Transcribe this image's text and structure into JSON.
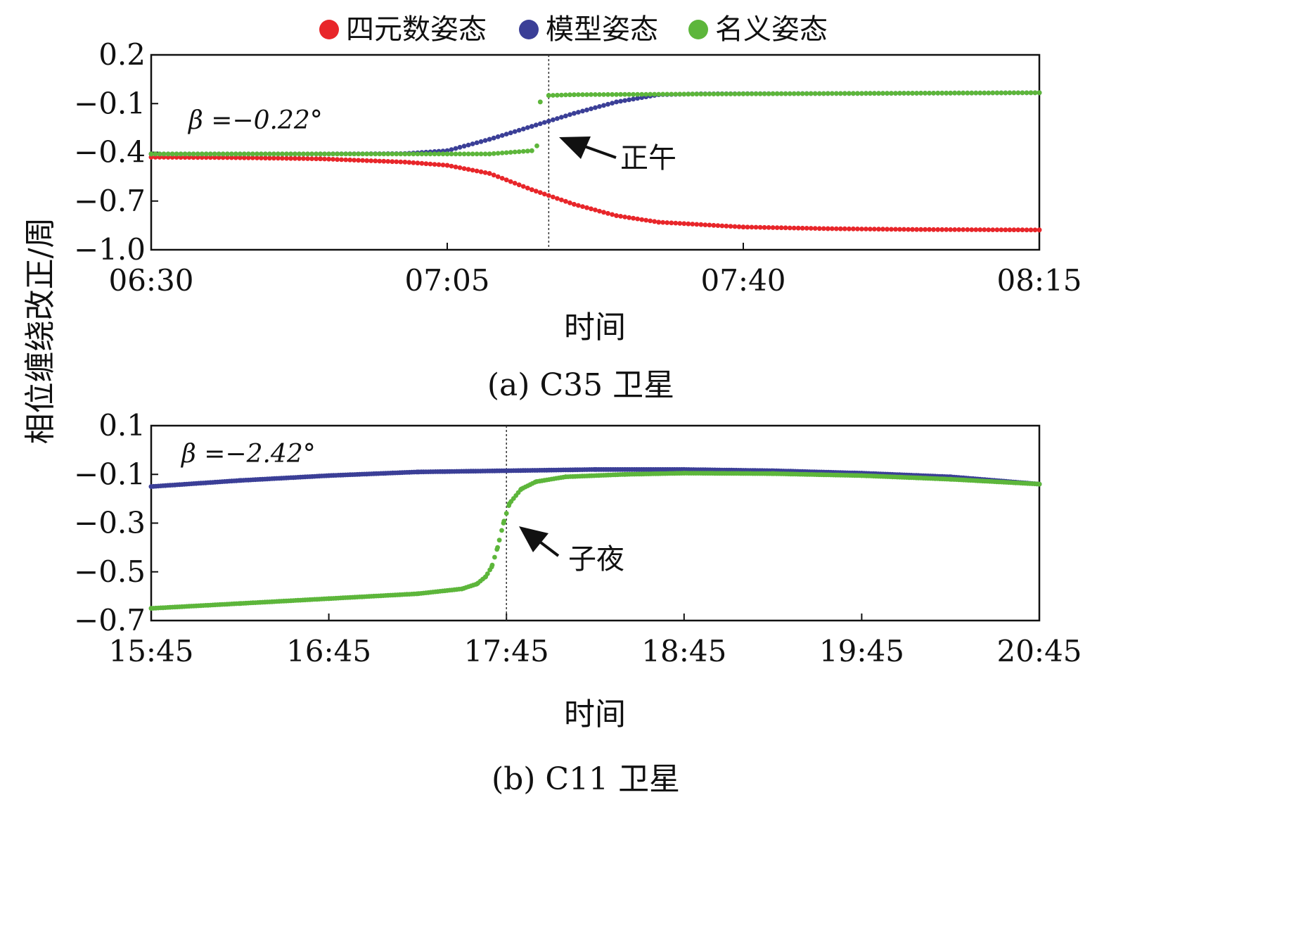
{
  "legend": [
    {
      "label": "四元数姿态",
      "color": "#e8262a"
    },
    {
      "label": "模型姿态",
      "color": "#3b3f97"
    },
    {
      "label": "名义姿态",
      "color": "#5db63b"
    }
  ],
  "y_label": "相位缠绕改正/周",
  "chart_data": [
    {
      "type": "scatter",
      "panel": "a",
      "caption": "(a) C35 卫星",
      "xlabel": "时间",
      "ylabel": "相位缠绕改正/周",
      "x_ticks": [
        "06:30",
        "07:05",
        "07:40",
        "08:15"
      ],
      "x_tick_minutes": [
        390,
        425,
        460,
        495
      ],
      "xlim_minutes": [
        390,
        495
      ],
      "y_ticks": [
        "0.2",
        "−0.1",
        "−0.4",
        "−0.7",
        "−1.0"
      ],
      "y_tick_values": [
        0.2,
        -0.1,
        -0.4,
        -0.7,
        -1.0
      ],
      "ylim": [
        -1.0,
        0.2
      ],
      "annotation": {
        "text": "正午",
        "x_minute": 437
      },
      "beta_label": "β =−0.22°",
      "series": [
        {
          "name": "四元数姿态",
          "color": "#e8262a",
          "points": [
            [
              390,
              -0.43
            ],
            [
              400,
              -0.433
            ],
            [
              410,
              -0.44
            ],
            [
              420,
              -0.46
            ],
            [
              425,
              -0.48
            ],
            [
              430,
              -0.53
            ],
            [
              435,
              -0.63
            ],
            [
              440,
              -0.72
            ],
            [
              445,
              -0.79
            ],
            [
              450,
              -0.83
            ],
            [
              460,
              -0.86
            ],
            [
              470,
              -0.87
            ],
            [
              480,
              -0.875
            ],
            [
              495,
              -0.878
            ]
          ]
        },
        {
          "name": "模型姿态",
          "color": "#3b3f97",
          "points": [
            [
              390,
              -0.41
            ],
            [
              410,
              -0.41
            ],
            [
              420,
              -0.408
            ],
            [
              425,
              -0.39
            ],
            [
              430,
              -0.32
            ],
            [
              435,
              -0.24
            ],
            [
              440,
              -0.16
            ],
            [
              445,
              -0.09
            ],
            [
              450,
              -0.045
            ],
            [
              455,
              -0.04
            ],
            [
              470,
              -0.038
            ],
            [
              495,
              -0.033
            ]
          ]
        },
        {
          "name": "名义姿态",
          "color": "#5db63b",
          "points": [
            [
              390,
              -0.41
            ],
            [
              400,
              -0.41
            ],
            [
              410,
              -0.41
            ],
            [
              420,
              -0.41
            ],
            [
              425,
              -0.41
            ],
            [
              430,
              -0.41
            ],
            [
              435,
              -0.39
            ],
            [
              435.6,
              -0.36
            ],
            [
              436,
              -0.09
            ],
            [
              437,
              -0.05
            ],
            [
              440,
              -0.045
            ],
            [
              460,
              -0.04
            ],
            [
              480,
              -0.036
            ],
            [
              495,
              -0.033
            ]
          ]
        }
      ]
    },
    {
      "type": "scatter",
      "panel": "b",
      "caption": "(b) C11 卫星",
      "xlabel": "时间",
      "ylabel": "相位缠绕改正/周",
      "x_ticks": [
        "15:45",
        "16:45",
        "17:45",
        "18:45",
        "19:45",
        "20:45"
      ],
      "x_tick_minutes": [
        945,
        1005,
        1065,
        1125,
        1185,
        1245
      ],
      "xlim_minutes": [
        945,
        1245
      ],
      "y_ticks": [
        "0.1",
        "−0.1",
        "−0.3",
        "−0.5",
        "−0.7"
      ],
      "y_tick_values": [
        0.1,
        -0.1,
        -0.3,
        -0.5,
        -0.7
      ],
      "ylim": [
        -0.7,
        0.1
      ],
      "annotation": {
        "text": "子夜",
        "x_minute": 1065
      },
      "beta_label": "β =−2.42°",
      "series": [
        {
          "name": "模型姿态",
          "color": "#3b3f97",
          "points": [
            [
              945,
              -0.15
            ],
            [
              975,
              -0.125
            ],
            [
              1005,
              -0.105
            ],
            [
              1035,
              -0.09
            ],
            [
              1065,
              -0.085
            ],
            [
              1095,
              -0.08
            ],
            [
              1125,
              -0.08
            ],
            [
              1155,
              -0.085
            ],
            [
              1185,
              -0.095
            ],
            [
              1215,
              -0.11
            ],
            [
              1245,
              -0.14
            ]
          ]
        },
        {
          "name": "名义姿态",
          "color": "#5db63b",
          "points": [
            [
              945,
              -0.65
            ],
            [
              975,
              -0.63
            ],
            [
              1005,
              -0.61
            ],
            [
              1035,
              -0.59
            ],
            [
              1050,
              -0.57
            ],
            [
              1055,
              -0.55
            ],
            [
              1058,
              -0.52
            ],
            [
              1060,
              -0.48
            ],
            [
              1062,
              -0.4
            ],
            [
              1064,
              -0.3
            ],
            [
              1066,
              -0.22
            ],
            [
              1070,
              -0.16
            ],
            [
              1075,
              -0.13
            ],
            [
              1085,
              -0.11
            ],
            [
              1105,
              -0.1
            ],
            [
              1125,
              -0.095
            ],
            [
              1155,
              -0.097
            ],
            [
              1185,
              -0.105
            ],
            [
              1215,
              -0.12
            ],
            [
              1245,
              -0.14
            ]
          ]
        }
      ]
    }
  ]
}
